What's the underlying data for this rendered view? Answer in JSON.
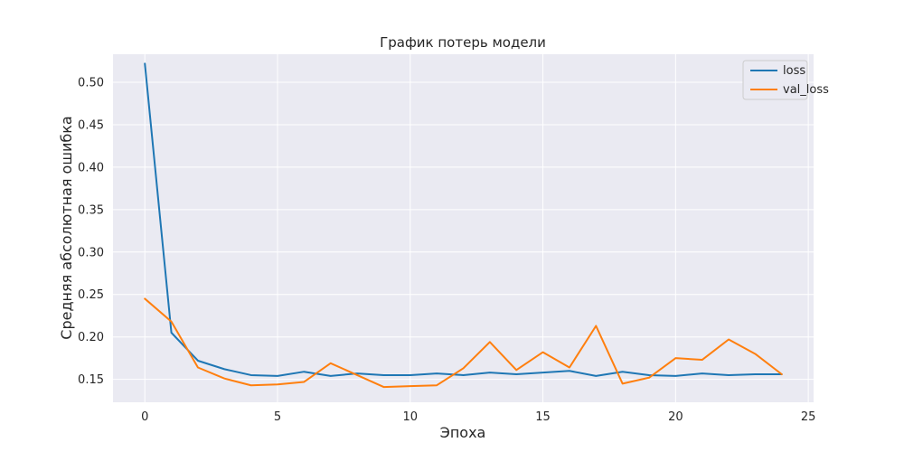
{
  "chart_data": {
    "type": "line",
    "title": "График потерь модели",
    "xlabel": "Эпоха",
    "ylabel": "Средняя абсолютная ошибка",
    "xlim": [
      -1.2,
      25.2
    ],
    "ylim": [
      0.123,
      0.533
    ],
    "xticks": [
      0,
      5,
      10,
      15,
      20,
      25
    ],
    "yticks": [
      0.15,
      0.2,
      0.25,
      0.3,
      0.35,
      0.4,
      0.45,
      0.5
    ],
    "ytick_labels": [
      "0.15",
      "0.20",
      "0.25",
      "0.30",
      "0.35",
      "0.40",
      "0.45",
      "0.50"
    ],
    "grid": true,
    "legend_position": "top-right",
    "x": [
      0,
      1,
      2,
      3,
      4,
      5,
      6,
      7,
      8,
      9,
      10,
      11,
      12,
      13,
      14,
      15,
      16,
      17,
      18,
      19,
      20,
      21,
      22,
      23,
      24
    ],
    "series": [
      {
        "name": "loss",
        "color": "#1f77b4",
        "values": [
          0.522,
          0.205,
          0.172,
          0.162,
          0.155,
          0.154,
          0.159,
          0.154,
          0.157,
          0.155,
          0.155,
          0.157,
          0.155,
          0.158,
          0.156,
          0.158,
          0.16,
          0.154,
          0.159,
          0.155,
          0.154,
          0.157,
          0.155,
          0.156,
          0.156
        ]
      },
      {
        "name": "val_loss",
        "color": "#ff7f0e",
        "values": [
          0.245,
          0.218,
          0.164,
          0.151,
          0.143,
          0.144,
          0.147,
          0.169,
          0.155,
          0.141,
          0.142,
          0.143,
          0.163,
          0.194,
          0.161,
          0.182,
          0.164,
          0.213,
          0.145,
          0.152,
          0.175,
          0.173,
          0.197,
          0.18,
          0.156
        ]
      }
    ]
  }
}
